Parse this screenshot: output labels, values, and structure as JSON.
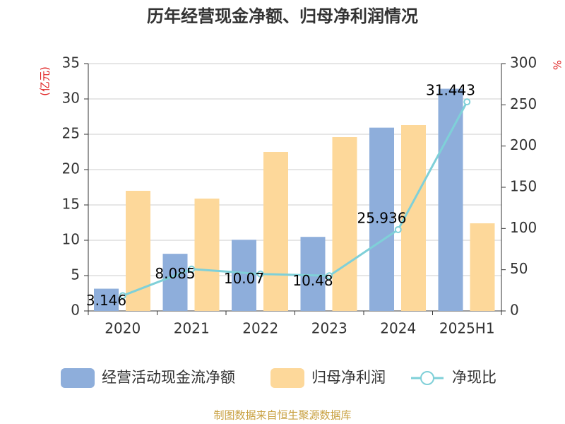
{
  "chart_data": {
    "type": "bar-line",
    "title": "历年经营现金净额、归母净利润情况",
    "y_label": "(亿元)",
    "y2_label": "%",
    "source": "制图数据来自恒生聚源数据库",
    "categories": [
      "2020",
      "2021",
      "2022",
      "2023",
      "2024",
      "2025H1"
    ],
    "series": [
      {
        "name": "经营活动现金流净额",
        "type": "bar",
        "color": "#8eaedb",
        "values": [
          3.146,
          8.085,
          10.07,
          10.48,
          25.936,
          31.443
        ]
      },
      {
        "name": "归母净利润",
        "type": "bar",
        "color": "#fdd89a",
        "values": [
          17,
          15.9,
          22.5,
          24.6,
          26.3,
          12.4
        ]
      },
      {
        "name": "净现比",
        "type": "line",
        "axis": "y2",
        "color": "#7fd0d8",
        "values": [
          18.5,
          50.8,
          44.8,
          42.6,
          98.6,
          253.6
        ]
      }
    ],
    "ylim": [
      0,
      35
    ],
    "yticks": [
      0,
      5,
      10,
      15,
      20,
      25,
      30,
      35
    ],
    "y2lim": [
      0,
      300
    ],
    "y2ticks": [
      0,
      50,
      100,
      150,
      200,
      250,
      300
    ],
    "grid": true
  }
}
